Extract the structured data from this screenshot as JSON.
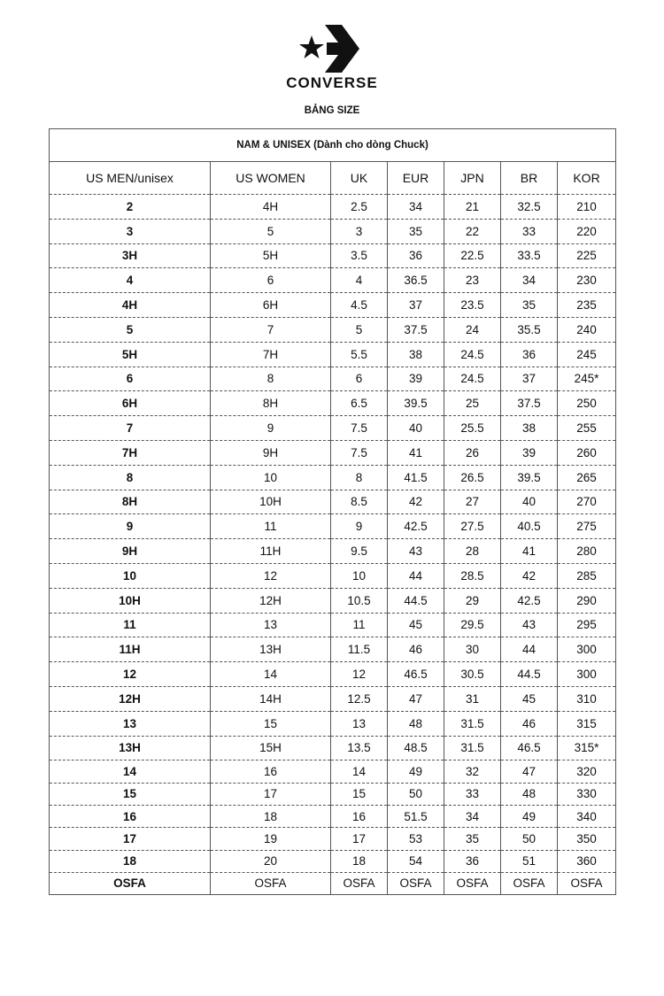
{
  "logo": {
    "brand": "CONVERSE",
    "icon": "converse-star-chevron-logo"
  },
  "subtitle": "BẢNG SIZE",
  "table": {
    "caption": "NAM & UNISEX (Dành cho dòng Chuck)",
    "headers": [
      "US MEN/unisex",
      "US WOMEN",
      "UK",
      "EUR",
      "JPN",
      "BR",
      "KOR"
    ],
    "rows": [
      [
        "2",
        "4H",
        "2.5",
        "34",
        "21",
        "32.5",
        "210"
      ],
      [
        "3",
        "5",
        "3",
        "35",
        "22",
        "33",
        "220"
      ],
      [
        "3H",
        "5H",
        "3.5",
        "36",
        "22.5",
        "33.5",
        "225"
      ],
      [
        "4",
        "6",
        "4",
        "36.5",
        "23",
        "34",
        "230"
      ],
      [
        "4H",
        "6H",
        "4.5",
        "37",
        "23.5",
        "35",
        "235"
      ],
      [
        "5",
        "7",
        "5",
        "37.5",
        "24",
        "35.5",
        "240"
      ],
      [
        "5H",
        "7H",
        "5.5",
        "38",
        "24.5",
        "36",
        "245"
      ],
      [
        "6",
        "8",
        "6",
        "39",
        "24.5",
        "37",
        "245*"
      ],
      [
        "6H",
        "8H",
        "6.5",
        "39.5",
        "25",
        "37.5",
        "250"
      ],
      [
        "7",
        "9",
        "7.5",
        "40",
        "25.5",
        "38",
        "255"
      ],
      [
        "7H",
        "9H",
        "7.5",
        "41",
        "26",
        "39",
        "260"
      ],
      [
        "8",
        "10",
        "8",
        "41.5",
        "26.5",
        "39.5",
        "265"
      ],
      [
        "8H",
        "10H",
        "8.5",
        "42",
        "27",
        "40",
        "270"
      ],
      [
        "9",
        "11",
        "9",
        "42.5",
        "27.5",
        "40.5",
        "275"
      ],
      [
        "9H",
        "11H",
        "9.5",
        "43",
        "28",
        "41",
        "280"
      ],
      [
        "10",
        "12",
        "10",
        "44",
        "28.5",
        "42",
        "285"
      ],
      [
        "10H",
        "12H",
        "10.5",
        "44.5",
        "29",
        "42.5",
        "290"
      ],
      [
        "11",
        "13",
        "11",
        "45",
        "29.5",
        "43",
        "295"
      ],
      [
        "11H",
        "13H",
        "11.5",
        "46",
        "30",
        "44",
        "300"
      ],
      [
        "12",
        "14",
        "12",
        "46.5",
        "30.5",
        "44.5",
        "300"
      ],
      [
        "12H",
        "14H",
        "12.5",
        "47",
        "31",
        "45",
        "310"
      ],
      [
        "13",
        "15",
        "13",
        "48",
        "31.5",
        "46",
        "315"
      ],
      [
        "13H",
        "15H",
        "13.5",
        "48.5",
        "31.5",
        "46.5",
        "315*"
      ],
      [
        "14",
        "16",
        "14",
        "49",
        "32",
        "47",
        "320"
      ],
      [
        "15",
        "17",
        "15",
        "50",
        "33",
        "48",
        "330"
      ],
      [
        "16",
        "18",
        "16",
        "51.5",
        "34",
        "49",
        "340"
      ],
      [
        "17",
        "19",
        "17",
        "53",
        "35",
        "50",
        "350"
      ],
      [
        "18",
        "20",
        "18",
        "54",
        "36",
        "51",
        "360"
      ],
      [
        "OSFA",
        "OSFA",
        "OSFA",
        "OSFA",
        "OSFA",
        "OSFA",
        "OSFA"
      ]
    ]
  }
}
